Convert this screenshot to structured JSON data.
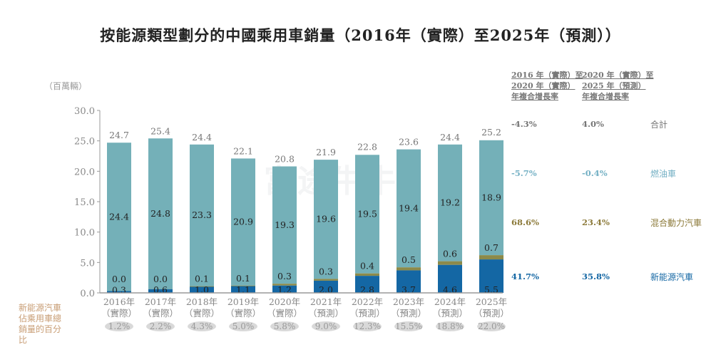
{
  "title": "按能源類型劃分的中國乘用車銷量（2016年（實際）至2025年（預測））",
  "unit_label": "（百萬輛）",
  "watermark": "富途牛牛",
  "left_note": "新能源汽車佔乘用車總銷量的百分比",
  "colors": {
    "ice": "#74b0b8",
    "hybrid": "#8c8a4a",
    "nev": "#1467a4",
    "total": "#777777",
    "note": "#c89d74"
  },
  "cagr_headers": [
    [
      "2016 年（實際）至",
      "2020 年（實際）",
      "年複合增長率"
    ],
    [
      "2020 年（實際）至",
      "2025 年（預測）",
      "年複合增長率"
    ]
  ],
  "cagr_rows": [
    {
      "label": "合計",
      "c1": "-4.3%",
      "c2": "4.0%",
      "color": "#777777"
    },
    {
      "label": "燃油車",
      "c1": "-5.7%",
      "c2": "-0.4%",
      "color": "#74b0c4"
    },
    {
      "label": "混合動力汽車",
      "c1": "68.6%",
      "c2": "23.4%",
      "color": "#8c7a3a"
    },
    {
      "label": "新能源汽車",
      "c1": "41.7%",
      "c2": "35.8%",
      "color": "#1467a4"
    }
  ],
  "chart_data": {
    "type": "bar",
    "stacked": true,
    "categories": [
      "2016年",
      "2017年",
      "2018年",
      "2019年",
      "2020年",
      "2021年",
      "2022年",
      "2023年",
      "2024年",
      "2025年"
    ],
    "sublabels": [
      "（實際）",
      "（實際）",
      "（實際）",
      "（實際）",
      "（實際）",
      "（預測）",
      "（預測）",
      "（預測）",
      "（預測）",
      "（預測）"
    ],
    "nev_share": [
      "1.2%",
      "2.2%",
      "4.3%",
      "5.0%",
      "5.8%",
      "9.0%",
      "12.3%",
      "15.5%",
      "18.8%",
      "22.0%"
    ],
    "series": [
      {
        "key": "nev",
        "values": [
          0.3,
          0.6,
          1.0,
          1.1,
          1.2,
          2.0,
          2.8,
          3.7,
          4.6,
          5.5
        ]
      },
      {
        "key": "hybrid",
        "values": [
          0.0,
          0.0,
          0.1,
          0.1,
          0.3,
          0.3,
          0.4,
          0.5,
          0.6,
          0.7
        ]
      },
      {
        "key": "ice",
        "values": [
          24.4,
          24.8,
          23.3,
          20.9,
          19.3,
          19.6,
          19.5,
          19.4,
          19.2,
          18.9
        ]
      }
    ],
    "totals": [
      24.7,
      25.4,
      24.4,
      22.1,
      20.8,
      21.9,
      22.8,
      23.6,
      24.4,
      25.2
    ],
    "yticks": [
      "0.0",
      "5.0",
      "10.0",
      "15.0",
      "20.0",
      "25.0",
      "30.0"
    ],
    "ylim": [
      0,
      30
    ],
    "grid": false
  }
}
